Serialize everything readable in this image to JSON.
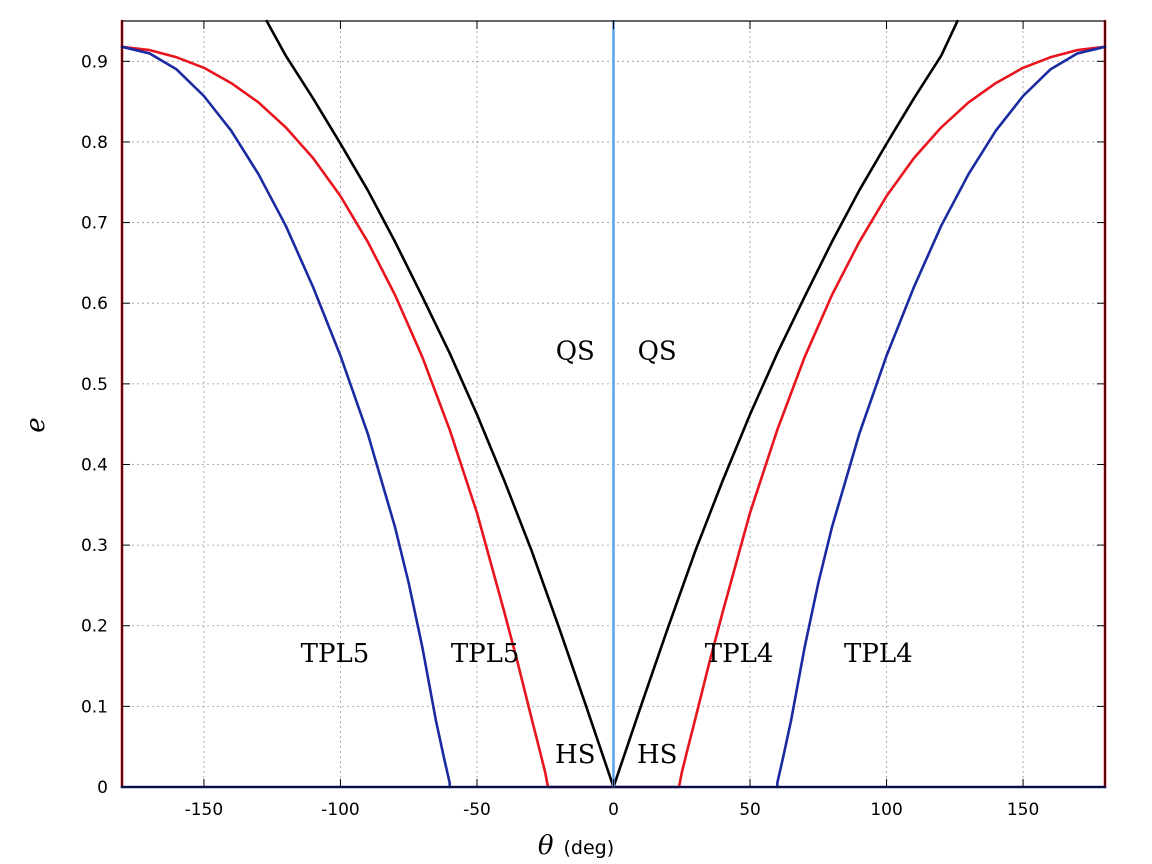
{
  "chart_data": {
    "type": "line",
    "xlabel": "θ",
    "xlabel_unit": "(deg)",
    "ylabel": "e",
    "xlim": [
      -180,
      180
    ],
    "ylim": [
      0,
      0.95
    ],
    "grid": true,
    "x_ticks": [
      -150,
      -100,
      -50,
      0,
      50,
      100,
      150
    ],
    "x_tick_labels": [
      "-150",
      "-100",
      "-50",
      "0",
      "50",
      "100",
      "150"
    ],
    "y_ticks": [
      0,
      0.1,
      0.2,
      0.3,
      0.4,
      0.5,
      0.6,
      0.7,
      0.8,
      0.9
    ],
    "y_tick_labels": [
      "0",
      "0.1",
      "0.2",
      "0.3",
      "0.4",
      "0.5",
      "0.6",
      "0.7",
      "0.8",
      "0.9"
    ],
    "colors": {
      "black": "#000000",
      "red": "#e8141e",
      "blue": "#1a2aa0",
      "lightblue": "#5ea6f0"
    },
    "series": [
      {
        "color": "black",
        "x": [
          -127,
          -120,
          -110,
          -100,
          -90,
          -80,
          -70,
          -60,
          -50,
          -40,
          -30,
          -20,
          -10,
          0,
          10,
          20,
          30,
          40,
          50,
          60,
          70,
          80,
          90,
          100,
          110,
          120,
          126
        ],
        "y": [
          0.95,
          0.907,
          0.854,
          0.798,
          0.74,
          0.676,
          0.608,
          0.538,
          0.462,
          0.38,
          0.293,
          0.198,
          0.1,
          0,
          0.1,
          0.198,
          0.293,
          0.38,
          0.462,
          0.538,
          0.608,
          0.676,
          0.74,
          0.798,
          0.854,
          0.907,
          0.95
        ]
      },
      {
        "color": "red",
        "x": [
          -180,
          -170,
          -160,
          -150,
          -140,
          -130,
          -120,
          -110,
          -100,
          -90,
          -80,
          -70,
          -60,
          -50,
          -40,
          -35,
          -30,
          -27,
          -25,
          -24,
          -24,
          24,
          24,
          25,
          27,
          30,
          35,
          40,
          50,
          60,
          70,
          80,
          90,
          100,
          110,
          120,
          130,
          140,
          150,
          160,
          170,
          180
        ],
        "y": [
          0.918,
          0.914,
          0.905,
          0.892,
          0.873,
          0.849,
          0.818,
          0.78,
          0.733,
          0.676,
          0.61,
          0.533,
          0.443,
          0.34,
          0.217,
          0.153,
          0.085,
          0.045,
          0.018,
          0.0,
          0.0,
          0.0,
          0.0,
          0.018,
          0.045,
          0.085,
          0.153,
          0.217,
          0.34,
          0.443,
          0.533,
          0.61,
          0.676,
          0.733,
          0.78,
          0.818,
          0.849,
          0.873,
          0.892,
          0.905,
          0.914,
          0.918
        ]
      },
      {
        "color": "red",
        "x": [
          -180,
          -180
        ],
        "y": [
          0,
          0.95
        ]
      },
      {
        "color": "red",
        "x": [
          180,
          180
        ],
        "y": [
          0,
          0.95
        ]
      },
      {
        "color": "blue",
        "x": [
          -180,
          -170,
          -160,
          -150,
          -140,
          -130,
          -120,
          -110,
          -100,
          -90,
          -80,
          -75,
          -70,
          -65,
          -62,
          -60,
          -60
        ],
        "y": [
          0.918,
          0.91,
          0.89,
          0.857,
          0.814,
          0.76,
          0.696,
          0.62,
          0.535,
          0.438,
          0.322,
          0.253,
          0.173,
          0.082,
          0.035,
          0.005,
          0.0
        ]
      },
      {
        "color": "blue",
        "x": [
          60,
          60,
          62,
          65,
          70,
          75,
          80,
          90,
          100,
          110,
          120,
          130,
          140,
          150,
          160,
          170,
          180
        ],
        "y": [
          0.0,
          0.005,
          0.035,
          0.082,
          0.173,
          0.253,
          0.322,
          0.438,
          0.535,
          0.62,
          0.696,
          0.76,
          0.814,
          0.857,
          0.89,
          0.91,
          0.918
        ]
      },
      {
        "color": "blue",
        "x": [
          -180,
          180
        ],
        "y": [
          0,
          0
        ]
      },
      {
        "color": "lightblue",
        "x": [
          0,
          0
        ],
        "y": [
          0,
          0.95
        ]
      }
    ],
    "annotations": [
      {
        "text": "QS",
        "x": -14,
        "y": 0.53
      },
      {
        "text": "QS",
        "x": 16,
        "y": 0.53
      },
      {
        "text": "TPL5",
        "x": -102,
        "y": 0.155
      },
      {
        "text": "TPL5",
        "x": -47,
        "y": 0.155
      },
      {
        "text": "TPL4",
        "x": 46,
        "y": 0.155
      },
      {
        "text": "TPL4",
        "x": 97,
        "y": 0.155
      },
      {
        "text": "HS",
        "x": -14,
        "y": 0.03
      },
      {
        "text": "HS",
        "x": 16,
        "y": 0.03
      }
    ]
  }
}
